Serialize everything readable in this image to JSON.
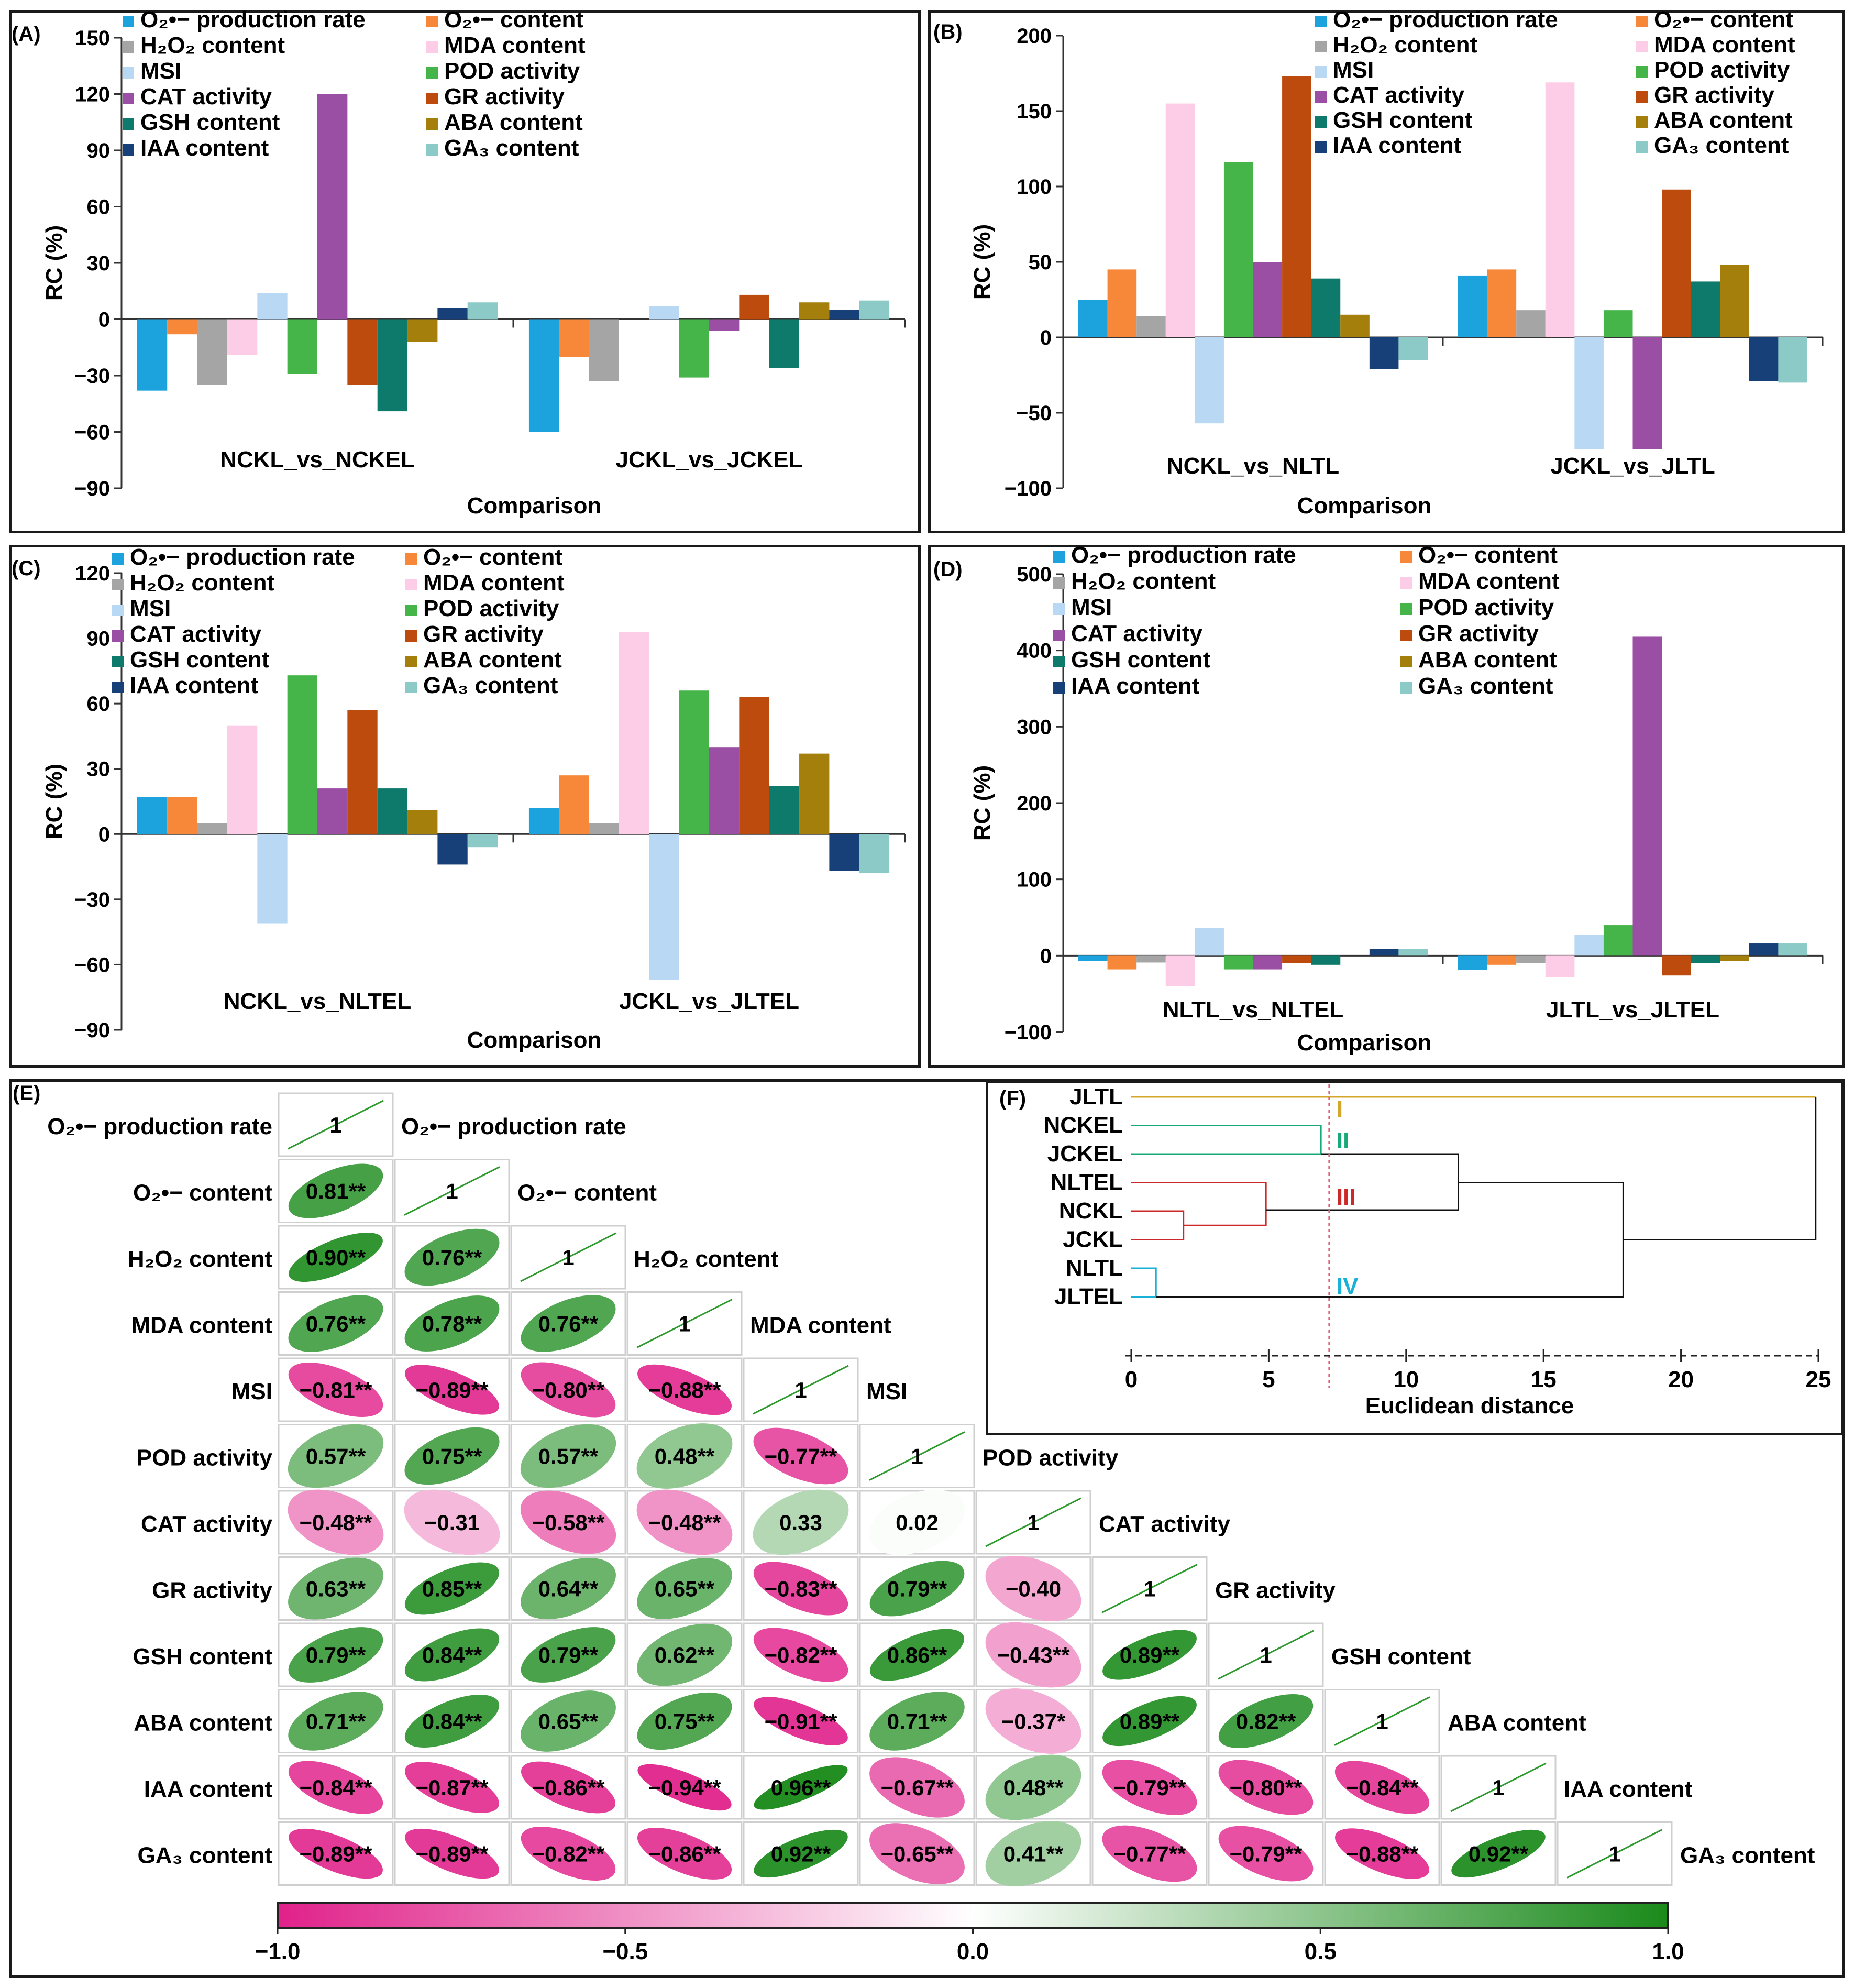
{
  "legend": [
    {
      "key": "o2_rate",
      "label": "O₂•− production rate",
      "color": "#1ca2dc"
    },
    {
      "key": "o2_content",
      "label": "O₂•− content",
      "color": "#f7883a"
    },
    {
      "key": "h2o2",
      "label": "H₂O₂ content",
      "color": "#a5a5a5"
    },
    {
      "key": "mda",
      "label": "MDA content",
      "color": "#fdcde7"
    },
    {
      "key": "msi",
      "label": "MSI",
      "color": "#b8d8f4"
    },
    {
      "key": "pod",
      "label": "POD activity",
      "color": "#45b449"
    },
    {
      "key": "cat",
      "label": "CAT activity",
      "color": "#9b4fa4"
    },
    {
      "key": "gr",
      "label": "GR activity",
      "color": "#bd4b0d"
    },
    {
      "key": "gsh",
      "label": "GSH content",
      "color": "#0e7a6b"
    },
    {
      "key": "aba",
      "label": "ABA content",
      "color": "#a47f0c"
    },
    {
      "key": "iaa",
      "label": "IAA content",
      "color": "#173f78"
    },
    {
      "key": "ga3",
      "label": "GA₃ content",
      "color": "#8ccac8"
    }
  ],
  "chart_data": [
    {
      "panel": "(A)",
      "type": "bar",
      "ylabel": "RC (%)",
      "xlabel": "Comparison",
      "ylim": [
        -90,
        150
      ],
      "yticks": [
        -90,
        -60,
        -30,
        0,
        30,
        60,
        90,
        120,
        150
      ],
      "categories": [
        "NCKL_vs_NCKEL",
        "JCKL_vs_JCKEL"
      ],
      "series": [
        {
          "name": "O₂•− production rate",
          "values": [
            -38,
            -60
          ]
        },
        {
          "name": "O₂•− content",
          "values": [
            -8,
            -20
          ]
        },
        {
          "name": "H₂O₂ content",
          "values": [
            -35,
            -33
          ]
        },
        {
          "name": "MDA content",
          "values": [
            -19,
            0
          ]
        },
        {
          "name": "MSI",
          "values": [
            14,
            7
          ]
        },
        {
          "name": "POD activity",
          "values": [
            -29,
            -31
          ]
        },
        {
          "name": "CAT activity",
          "values": [
            120,
            -6
          ]
        },
        {
          "name": "GR activity",
          "values": [
            -35,
            13
          ]
        },
        {
          "name": "GSH content",
          "values": [
            -49,
            -26
          ]
        },
        {
          "name": "ABA content",
          "values": [
            -12,
            9
          ]
        },
        {
          "name": "IAA content",
          "values": [
            6,
            5
          ]
        },
        {
          "name": "GA₃ content",
          "values": [
            9,
            10
          ]
        }
      ]
    },
    {
      "panel": "(B)",
      "type": "bar",
      "ylabel": "RC (%)",
      "xlabel": "Comparison",
      "ylim": [
        -100,
        200
      ],
      "yticks": [
        -100,
        -50,
        0,
        50,
        100,
        150,
        200
      ],
      "categories": [
        "NCKL_vs_NLTL",
        "JCKL_vs_JLTL"
      ],
      "series": [
        {
          "name": "O₂•− production rate",
          "values": [
            25,
            41
          ]
        },
        {
          "name": "O₂•− content",
          "values": [
            45,
            45
          ]
        },
        {
          "name": "H₂O₂ content",
          "values": [
            14,
            18
          ]
        },
        {
          "name": "MDA content",
          "values": [
            155,
            169
          ]
        },
        {
          "name": "MSI",
          "values": [
            -57,
            -74
          ]
        },
        {
          "name": "POD activity",
          "values": [
            116,
            18
          ]
        },
        {
          "name": "CAT activity",
          "values": [
            50,
            -74
          ]
        },
        {
          "name": "GR activity",
          "values": [
            173,
            98
          ]
        },
        {
          "name": "GSH content",
          "values": [
            39,
            37
          ]
        },
        {
          "name": "ABA content",
          "values": [
            15,
            48
          ]
        },
        {
          "name": "IAA content",
          "values": [
            -21,
            -29
          ]
        },
        {
          "name": "GA₃ content",
          "values": [
            -15,
            -30
          ]
        }
      ]
    },
    {
      "panel": "(C)",
      "type": "bar",
      "ylabel": "RC (%)",
      "xlabel": "Comparison",
      "ylim": [
        -90,
        120
      ],
      "yticks": [
        -90,
        -60,
        -30,
        0,
        30,
        60,
        90,
        120
      ],
      "categories": [
        "NCKL_vs_NLTEL",
        "JCKL_vs_JLTEL"
      ],
      "series": [
        {
          "name": "O₂•− production rate",
          "values": [
            17,
            12
          ]
        },
        {
          "name": "O₂•− content",
          "values": [
            17,
            27
          ]
        },
        {
          "name": "H₂O₂ content",
          "values": [
            5,
            5
          ]
        },
        {
          "name": "MDA content",
          "values": [
            50,
            93
          ]
        },
        {
          "name": "MSI",
          "values": [
            -41,
            -67
          ]
        },
        {
          "name": "POD activity",
          "values": [
            73,
            66
          ]
        },
        {
          "name": "CAT activity",
          "values": [
            21,
            40
          ]
        },
        {
          "name": "GR activity",
          "values": [
            57,
            63
          ]
        },
        {
          "name": "GSH content",
          "values": [
            21,
            22
          ]
        },
        {
          "name": "ABA content",
          "values": [
            11,
            37
          ]
        },
        {
          "name": "IAA content",
          "values": [
            -14,
            -17
          ]
        },
        {
          "name": "GA₃ content",
          "values": [
            -6,
            -18
          ]
        }
      ]
    },
    {
      "panel": "(D)",
      "type": "bar",
      "ylabel": "RC (%)",
      "xlabel": "Comparison",
      "ylim": [
        -100,
        500
      ],
      "yticks": [
        -100,
        0,
        100,
        200,
        300,
        400,
        500
      ],
      "categories": [
        "NLTL_vs_NLTEL",
        "JLTL_vs_JLTEL"
      ],
      "series": [
        {
          "name": "O₂•− production rate",
          "values": [
            -7,
            -19
          ]
        },
        {
          "name": "O₂•− content",
          "values": [
            -18,
            -12
          ]
        },
        {
          "name": "H₂O₂ content",
          "values": [
            -9,
            -10
          ]
        },
        {
          "name": "MDA content",
          "values": [
            -40,
            -28
          ]
        },
        {
          "name": "MSI",
          "values": [
            36,
            27
          ]
        },
        {
          "name": "POD activity",
          "values": [
            -18,
            40
          ]
        },
        {
          "name": "CAT activity",
          "values": [
            -18,
            418
          ]
        },
        {
          "name": "GR activity",
          "values": [
            -10,
            -26
          ]
        },
        {
          "name": "GSH content",
          "values": [
            -12,
            -10
          ]
        },
        {
          "name": "ABA content",
          "values": [
            0,
            -7
          ]
        },
        {
          "name": "IAA content",
          "values": [
            9,
            16
          ]
        },
        {
          "name": "GA₃ content",
          "values": [
            9,
            16
          ]
        }
      ]
    },
    {
      "panel": "(E)",
      "type": "heatmap",
      "variables": [
        "O₂•− production rate",
        "O₂•− content",
        "H₂O₂ content",
        "MDA content",
        "MSI",
        "POD activity",
        "CAT activity",
        "GR activity",
        "GSH content",
        "ABA content",
        "IAA content",
        "GA₃ content"
      ],
      "colorbar": {
        "ticks": [
          "−1.0",
          "−0.5",
          "0.0",
          "0.5",
          "1.0"
        ],
        "low_color": "#e0218a",
        "mid_color": "#ffffff",
        "high_color": "#1a8a1a",
        "range": [
          -1,
          1
        ]
      },
      "rows": [
        [
          {
            "v": 1,
            "t": "1"
          }
        ],
        [
          {
            "v": 0.81,
            "t": "0.81**"
          },
          {
            "v": 1,
            "t": "1"
          }
        ],
        [
          {
            "v": 0.9,
            "t": "0.90**"
          },
          {
            "v": 0.76,
            "t": "0.76**"
          },
          {
            "v": 1,
            "t": "1"
          }
        ],
        [
          {
            "v": 0.76,
            "t": "0.76**"
          },
          {
            "v": 0.78,
            "t": "0.78**"
          },
          {
            "v": 0.76,
            "t": "0.76**"
          },
          {
            "v": 1,
            "t": "1"
          }
        ],
        [
          {
            "v": -0.81,
            "t": "−0.81**"
          },
          {
            "v": -0.89,
            "t": "−0.89**"
          },
          {
            "v": -0.8,
            "t": "−0.80**"
          },
          {
            "v": -0.88,
            "t": "−0.88**"
          },
          {
            "v": 1,
            "t": "1"
          }
        ],
        [
          {
            "v": 0.57,
            "t": "0.57**"
          },
          {
            "v": 0.75,
            "t": "0.75**"
          },
          {
            "v": 0.57,
            "t": "0.57**"
          },
          {
            "v": 0.48,
            "t": "0.48**"
          },
          {
            "v": -0.77,
            "t": "−0.77**"
          },
          {
            "v": 1,
            "t": "1"
          }
        ],
        [
          {
            "v": -0.48,
            "t": "−0.48**"
          },
          {
            "v": -0.31,
            "t": "−0.31"
          },
          {
            "v": -0.58,
            "t": "−0.58**"
          },
          {
            "v": -0.48,
            "t": "−0.48**"
          },
          {
            "v": 0.33,
            "t": "0.33"
          },
          {
            "v": 0.02,
            "t": "0.02"
          },
          {
            "v": 1,
            "t": "1"
          }
        ],
        [
          {
            "v": 0.63,
            "t": "0.63**"
          },
          {
            "v": 0.85,
            "t": "0.85**"
          },
          {
            "v": 0.64,
            "t": "0.64**"
          },
          {
            "v": 0.65,
            "t": "0.65**"
          },
          {
            "v": -0.83,
            "t": "−0.83**"
          },
          {
            "v": 0.79,
            "t": "0.79**"
          },
          {
            "v": -0.4,
            "t": "−0.40"
          },
          {
            "v": 1,
            "t": "1"
          }
        ],
        [
          {
            "v": 0.79,
            "t": "0.79**"
          },
          {
            "v": 0.84,
            "t": "0.84**"
          },
          {
            "v": 0.79,
            "t": "0.79**"
          },
          {
            "v": 0.62,
            "t": "0.62**"
          },
          {
            "v": -0.82,
            "t": "−0.82**"
          },
          {
            "v": 0.86,
            "t": "0.86**"
          },
          {
            "v": -0.43,
            "t": "−0.43**"
          },
          {
            "v": 0.89,
            "t": "0.89**"
          },
          {
            "v": 1,
            "t": "1"
          }
        ],
        [
          {
            "v": 0.71,
            "t": "0.71**"
          },
          {
            "v": 0.84,
            "t": "0.84**"
          },
          {
            "v": 0.65,
            "t": "0.65**"
          },
          {
            "v": 0.75,
            "t": "0.75**"
          },
          {
            "v": -0.91,
            "t": "−0.91**"
          },
          {
            "v": 0.71,
            "t": "0.71**"
          },
          {
            "v": -0.37,
            "t": "−0.37*"
          },
          {
            "v": 0.89,
            "t": "0.89**"
          },
          {
            "v": 0.82,
            "t": "0.82**"
          },
          {
            "v": 1,
            "t": "1"
          }
        ],
        [
          {
            "v": -0.84,
            "t": "−0.84**"
          },
          {
            "v": -0.87,
            "t": "−0.87**"
          },
          {
            "v": -0.86,
            "t": "−0.86**"
          },
          {
            "v": -0.94,
            "t": "−0.94**"
          },
          {
            "v": 0.96,
            "t": "0.96**"
          },
          {
            "v": -0.67,
            "t": "−0.67**"
          },
          {
            "v": 0.48,
            "t": "0.48**"
          },
          {
            "v": -0.79,
            "t": "−0.79**"
          },
          {
            "v": -0.8,
            "t": "−0.80**"
          },
          {
            "v": -0.84,
            "t": "−0.84**"
          },
          {
            "v": 1,
            "t": "1"
          }
        ],
        [
          {
            "v": -0.89,
            "t": "−0.89**"
          },
          {
            "v": -0.89,
            "t": "−0.89**"
          },
          {
            "v": -0.82,
            "t": "−0.82**"
          },
          {
            "v": -0.86,
            "t": "−0.86**"
          },
          {
            "v": 0.92,
            "t": "0.92**"
          },
          {
            "v": -0.65,
            "t": "−0.65**"
          },
          {
            "v": 0.41,
            "t": "0.41**"
          },
          {
            "v": -0.77,
            "t": "−0.77**"
          },
          {
            "v": -0.79,
            "t": "−0.79**"
          },
          {
            "v": -0.88,
            "t": "−0.88**"
          },
          {
            "v": 0.92,
            "t": "0.92**"
          },
          {
            "v": 1,
            "t": "1"
          }
        ]
      ]
    },
    {
      "panel": "(F)",
      "type": "dendrogram",
      "xlabel": "Euclidean distance",
      "xlim": [
        0,
        25
      ],
      "xticks": [
        0,
        5,
        10,
        15,
        20,
        25
      ],
      "cut_distance": 7.2,
      "leaves": [
        "JLTL",
        "NCKEL",
        "JCKEL",
        "NLTEL",
        "NCKL",
        "JCKL",
        "NLTL",
        "JLTEL"
      ],
      "merges": [
        {
          "a": "NLTL",
          "b": "JLTEL",
          "height": 0.9,
          "color": "#1ab1d6"
        },
        {
          "a": "NCKL",
          "b": "JCKL",
          "height": 1.9,
          "color": "#cc2a2a"
        },
        {
          "a": "NLTEL",
          "b": "NCKL+JCKL",
          "height": 4.9,
          "color": "#cc2a2a"
        },
        {
          "a": "NCKEL",
          "b": "JCKEL",
          "height": 6.9,
          "color": "#19a87a"
        },
        {
          "a": "II",
          "b": "III",
          "height": 11.9,
          "color": "#111111"
        },
        {
          "a": "II+III",
          "b": "IV",
          "height": 17.9,
          "color": "#111111"
        },
        {
          "a": "I",
          "b": "rest",
          "height": 24.9,
          "color": "#111111"
        }
      ],
      "clusters": [
        {
          "label": "I",
          "color": "#d4a72c"
        },
        {
          "label": "II",
          "color": "#19a87a"
        },
        {
          "label": "III",
          "color": "#cc2a2a"
        },
        {
          "label": "IV",
          "color": "#1ab1d6"
        }
      ]
    }
  ]
}
